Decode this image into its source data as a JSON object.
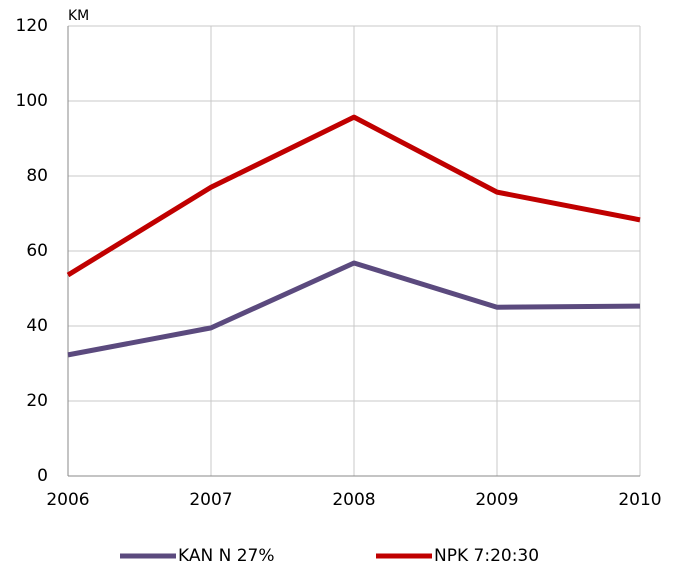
{
  "chart_data": {
    "type": "line",
    "y_label": "KM",
    "x": [
      2006,
      2007,
      2008,
      2009,
      2010
    ],
    "xlim": [
      2006,
      2010
    ],
    "xticks": [
      2006,
      2007,
      2008,
      2009,
      2010
    ],
    "ylim": [
      0,
      120
    ],
    "yticks": [
      0,
      20,
      40,
      60,
      80,
      100,
      120
    ],
    "grid": true,
    "legend": "bottom",
    "series": [
      {
        "name": "KAN N 27%",
        "color": "#5b4a7e",
        "values": [
          32.3,
          39.5,
          56.8,
          45,
          45.3
        ]
      },
      {
        "name": "NPK 7:20:30",
        "color": "#c00000",
        "values": [
          53.6,
          77,
          95.7,
          75.7,
          68.3
        ]
      }
    ]
  }
}
